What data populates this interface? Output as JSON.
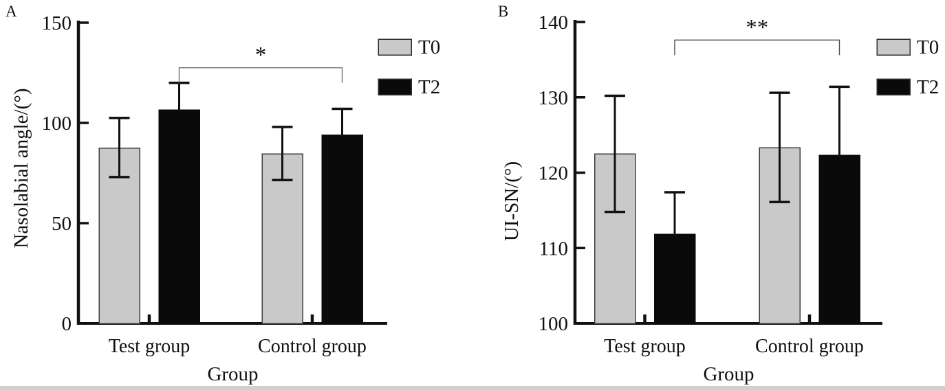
{
  "figure": {
    "background": "#ffffff",
    "bottom_strip_color": "#ccd1d4"
  },
  "chart_data": [
    {
      "type": "bar",
      "panel_label": "A",
      "title": "",
      "xlabel": "Group",
      "ylabel": "Nasolabial angle/(°)",
      "ylim": [
        0,
        150
      ],
      "yticks": [
        0,
        50,
        100,
        150
      ],
      "categories": [
        "Test group",
        "Control group"
      ],
      "series": [
        {
          "name": "T0",
          "color": "#c9c9c9",
          "edge_color": "#3d3d3d",
          "values": [
            87.5,
            84.5
          ],
          "err_low": [
            73,
            71.5
          ],
          "err_high": [
            102.5,
            98
          ]
        },
        {
          "name": "T2",
          "color": "#0a0a0a",
          "edge_color": "#0a0a0a",
          "values": [
            106.5,
            94
          ],
          "err_low": [
            null,
            null
          ],
          "err_high": [
            120,
            107
          ]
        }
      ],
      "error_color": "#111111",
      "axis_color": "#111111",
      "significance": {
        "label": "*",
        "from": [
          "Test group",
          "T2"
        ],
        "to": [
          "Control group",
          "T2"
        ],
        "bar_value": 127.5,
        "drop_value": 120,
        "color": "#6e6e6e"
      },
      "legend": {
        "position": "top-right",
        "entries": [
          "T0",
          "T2"
        ]
      },
      "grid": false
    },
    {
      "type": "bar",
      "panel_label": "B",
      "title": "",
      "xlabel": "Group",
      "ylabel": "UI-SN/(°)",
      "ylim": [
        100,
        140
      ],
      "yticks": [
        100,
        110,
        120,
        130,
        140
      ],
      "categories": [
        "Test group",
        "Control group"
      ],
      "series": [
        {
          "name": "T0",
          "color": "#c9c9c9",
          "edge_color": "#3d3d3d",
          "values": [
            122.5,
            123.3
          ],
          "err_low": [
            114.8,
            116.1
          ],
          "err_high": [
            130.2,
            130.6
          ]
        },
        {
          "name": "T2",
          "color": "#0a0a0a",
          "edge_color": "#0a0a0a",
          "values": [
            111.8,
            122.3
          ],
          "err_low": [
            null,
            null
          ],
          "err_high": [
            117.4,
            131.4
          ]
        }
      ],
      "error_color": "#111111",
      "axis_color": "#111111",
      "significance": {
        "label": "**",
        "from": [
          "Test group",
          "T2"
        ],
        "to": [
          "Control group",
          "T2"
        ],
        "bar_value": 137.6,
        "drop_value": 135.6,
        "color": "#4a4a4a"
      },
      "legend": {
        "position": "top-right",
        "entries": [
          "T0",
          "T2"
        ]
      },
      "grid": false
    }
  ]
}
